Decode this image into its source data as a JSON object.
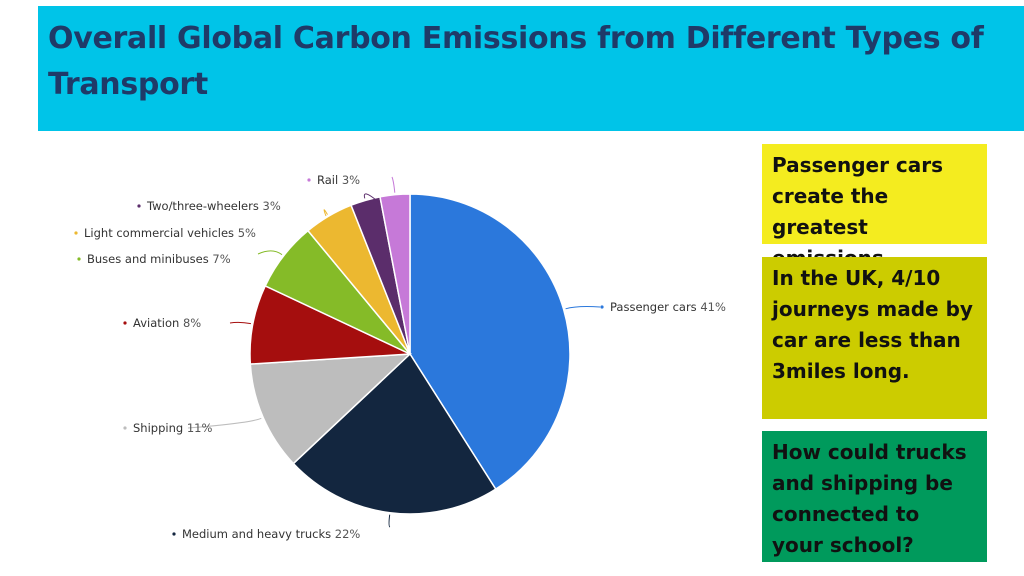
{
  "slide": {
    "title": "Overall Global Carbon Emissions from Different Types of Transport",
    "colors": {
      "title_bg": "#00c4e8",
      "title_text": "#1f3a68"
    }
  },
  "notes": [
    {
      "text": "Passenger cars create the greatest emissions.",
      "bg": "#f4ec1f"
    },
    {
      "text": "In the UK, 4/10 journeys made by car are less than 3miles long.",
      "bg": "#cccc00"
    },
    {
      "text": "How could trucks and shipping be connected to your school?",
      "bg": "#009a5c"
    }
  ],
  "chart_data": {
    "type": "pie",
    "unit": "%",
    "start": "top, clockwise",
    "slices": [
      {
        "label": "Passenger cars",
        "value": 41,
        "pct_text": "41%",
        "color": "#2b78dc"
      },
      {
        "label": "Medium and heavy trucks",
        "value": 22,
        "pct_text": "22%",
        "color": "#13263f"
      },
      {
        "label": "Shipping",
        "value": 11,
        "pct_text": "11%",
        "color": "#bdbdbd"
      },
      {
        "label": "Aviation",
        "value": 8,
        "pct_text": "8%",
        "color": "#a50e0e"
      },
      {
        "label": "Buses and minibuses",
        "value": 7,
        "pct_text": "7%",
        "color": "#85bb28"
      },
      {
        "label": "Light commercial vehicles",
        "value": 5,
        "pct_text": "5%",
        "color": "#ecb830"
      },
      {
        "label": "Two/three-wheelers",
        "value": 3,
        "pct_text": "3%",
        "color": "#5b2d6b"
      },
      {
        "label": "Rail",
        "value": 3,
        "pct_text": "3%",
        "color": "#c679d8"
      }
    ]
  }
}
